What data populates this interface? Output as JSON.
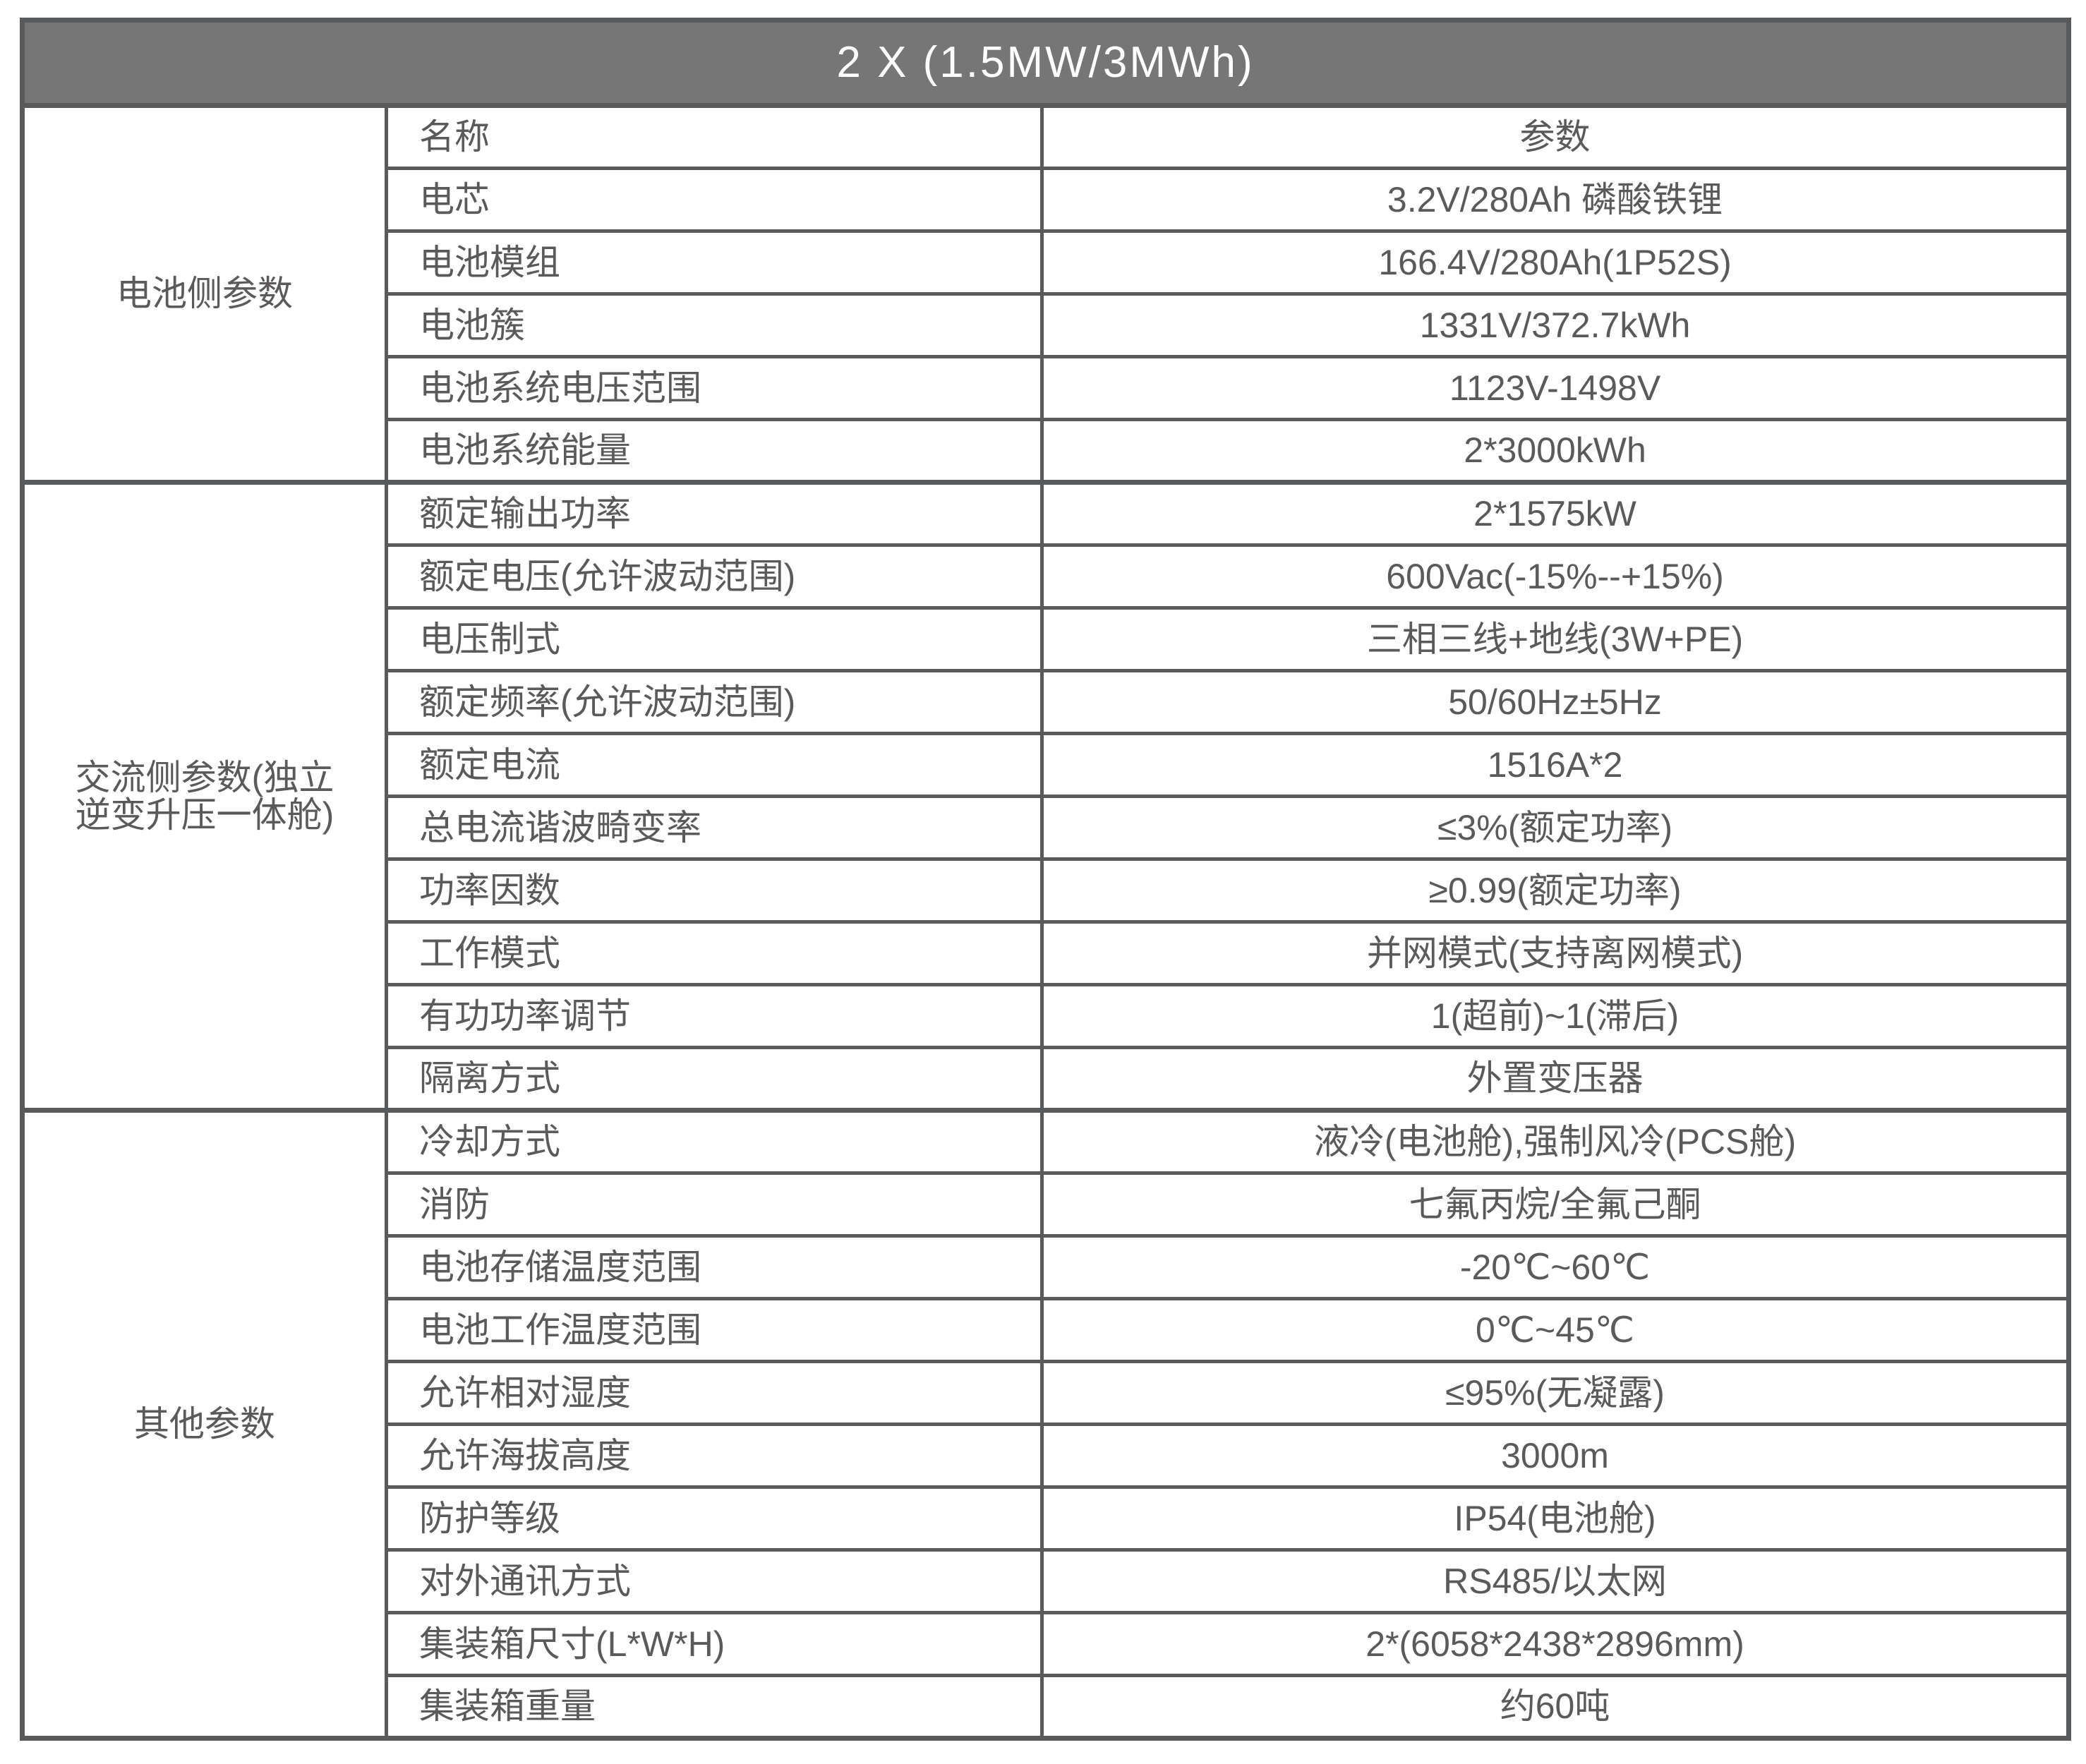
{
  "title": "2 X (1.5MW/3MWh)",
  "colors": {
    "title_bg": "#767676",
    "title_text": "#ffffff",
    "border": "#595a5c",
    "cell_text": "#5b5959",
    "cell_bg": "#ffffff"
  },
  "table": {
    "groups": [
      {
        "label": "电池侧参数",
        "rows": [
          {
            "label": "名称",
            "value": "参数"
          },
          {
            "label": "电芯",
            "value": "3.2V/280Ah 磷酸铁锂"
          },
          {
            "label": "电池模组",
            "value": "166.4V/280Ah(1P52S)"
          },
          {
            "label": "电池簇",
            "value": "1331V/372.7kWh"
          },
          {
            "label": "电池系统电压范围",
            "value": "1123V-1498V"
          },
          {
            "label": "电池系统能量",
            "value": "2*3000kWh"
          }
        ]
      },
      {
        "label": "交流侧参数(独立逆变升压一体舱)",
        "rows": [
          {
            "label": "额定输出功率",
            "value": "2*1575kW"
          },
          {
            "label": "额定电压(允许波动范围)",
            "value": "600Vac(-15%--+15%)"
          },
          {
            "label": "电压制式",
            "value": "三相三线+地线(3W+PE)"
          },
          {
            "label": "额定频率(允许波动范围)",
            "value": "50/60Hz±5Hz"
          },
          {
            "label": "额定电流",
            "value": "1516A*2"
          },
          {
            "label": "总电流谐波畸变率",
            "value": "≤3%(额定功率)"
          },
          {
            "label": "功率因数",
            "value": "≥0.99(额定功率)"
          },
          {
            "label": "工作模式",
            "value": "并网模式(支持离网模式)"
          },
          {
            "label": "有功功率调节",
            "value": "1(超前)~1(滞后)"
          },
          {
            "label": "隔离方式",
            "value": "外置变压器"
          }
        ]
      },
      {
        "label": "其他参数",
        "rows": [
          {
            "label": "冷却方式",
            "value": "液冷(电池舱),强制风冷(PCS舱)"
          },
          {
            "label": "消防",
            "value": "七氟丙烷/全氟己酮"
          },
          {
            "label": "电池存储温度范围",
            "value": "-20℃~60℃"
          },
          {
            "label": "电池工作温度范围",
            "value": "0℃~45℃"
          },
          {
            "label": "允许相对湿度",
            "value": "≤95%(无凝露)"
          },
          {
            "label": "允许海拔高度",
            "value": "3000m"
          },
          {
            "label": "防护等级",
            "value": "IP54(电池舱)"
          },
          {
            "label": "对外通讯方式",
            "value": "RS485/以太网"
          },
          {
            "label": "集装箱尺寸(L*W*H)",
            "value": "2*(6058*2438*2896mm)"
          },
          {
            "label": "集装箱重量",
            "value": "约60吨"
          }
        ]
      }
    ]
  }
}
